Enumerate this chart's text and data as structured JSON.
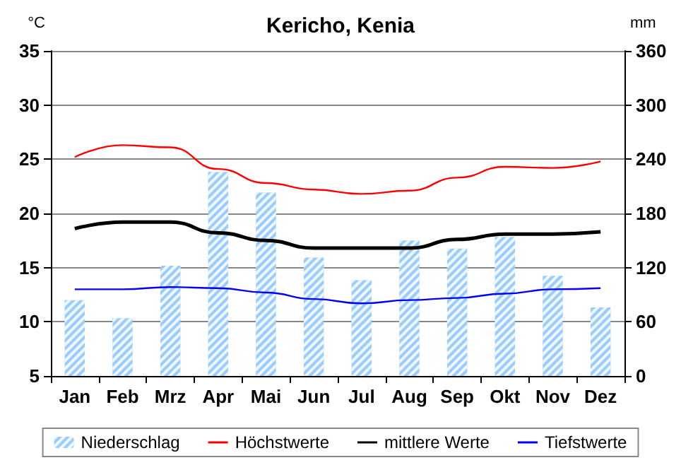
{
  "chart_data": {
    "type": "bar",
    "title": "Kericho, Kenia",
    "ylabel": "°C",
    "y2label": "mm",
    "categories": [
      "Jan",
      "Feb",
      "Mrz",
      "Apr",
      "Mai",
      "Jun",
      "Jul",
      "Aug",
      "Sep",
      "Okt",
      "Nov",
      "Dez"
    ],
    "series": [
      {
        "name": "Niederschlag",
        "axis": "y2",
        "color": "#99ccff",
        "values": [
          84,
          64,
          122,
          226,
          203,
          131,
          106,
          150,
          141,
          154,
          111,
          76
        ]
      },
      {
        "name": "Höchstwerte",
        "type": "line",
        "color": "#ff0000",
        "values": [
          25.2,
          26.3,
          26.1,
          24.1,
          22.8,
          22.2,
          21.8,
          22.1,
          23.3,
          24.3,
          24.2,
          24.8
        ]
      },
      {
        "name": "mittlere Werte",
        "type": "line",
        "color": "#000000",
        "values": [
          18.6,
          19.2,
          19.2,
          18.2,
          17.5,
          16.8,
          16.8,
          16.8,
          17.6,
          18.1,
          18.1,
          18.3
        ]
      },
      {
        "name": "Tiefstwerte",
        "type": "line",
        "color": "#0000ff",
        "values": [
          13.0,
          13.0,
          13.2,
          13.1,
          12.7,
          12.1,
          11.7,
          12.0,
          12.2,
          12.6,
          13.0,
          13.1
        ]
      }
    ],
    "ylim": [
      5,
      35
    ],
    "yticks": [
      5,
      10,
      15,
      20,
      25,
      30,
      35
    ],
    "y2lim": [
      0,
      360
    ],
    "y2ticks": [
      0,
      60,
      120,
      180,
      240,
      300,
      360
    ],
    "grid": "y",
    "legend": "bottom",
    "marker": "none",
    "line_style": "solid"
  }
}
